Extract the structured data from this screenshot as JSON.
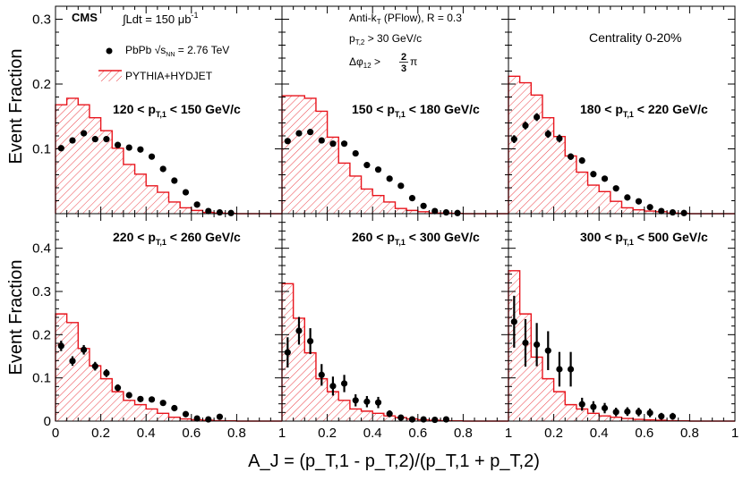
{
  "chart_data": {
    "type": "scatter",
    "ylabel": "Event Fraction",
    "xlabel": "A_J = (p_T,1 - p_T,2)/(p_T,1 + p_T,2)",
    "xlim": [
      0,
      1
    ],
    "grid": false,
    "legend_position": "top-left",
    "colors": {
      "mc": "#e8141c",
      "data": "#000000"
    },
    "shared_x": [
      0.025,
      0.075,
      0.125,
      0.175,
      0.225,
      0.275,
      0.325,
      0.375,
      0.425,
      0.475,
      0.525,
      0.575,
      0.625,
      0.675,
      0.725,
      0.775,
      0.825,
      0.875,
      0.925,
      0.975
    ],
    "ticks": {
      "x_labels": [
        "0",
        "0.2",
        "0.4",
        "0.6",
        "0.8",
        "1"
      ],
      "x_values": [
        0,
        0.2,
        0.4,
        0.6,
        0.8,
        1.0
      ],
      "top_row_labels": [
        "0.1",
        "0.2",
        "0.3"
      ],
      "top_row_values": [
        0.1,
        0.2,
        0.3
      ],
      "bottom_row_labels": [
        "0",
        "0.1",
        "0.2",
        "0.3",
        "0.4"
      ],
      "bottom_row_values": [
        0,
        0.1,
        0.2,
        0.3,
        0.4
      ]
    },
    "annotations": {
      "experiment": "CMS",
      "lumi": "∫Ldt = 150 μb",
      "lumi_sup": "-1",
      "algo_main": "Anti-k",
      "algo_sub": "T",
      "algo_rest": " (PFlow), R = 0.3",
      "pt2_main": "p",
      "pt2_sub": "T,2",
      "pt2_rest": " > 30 GeV/c",
      "dphi_main": "Δφ",
      "dphi_sub": "12",
      "dphi_rest": " > ",
      "dphi_frac_num": "2",
      "dphi_frac_den": "3",
      "dphi_pi": "π",
      "centrality": "Centrality 0-20%"
    },
    "legend": {
      "data_main": "PbPb ",
      "data_sqrt": "√s",
      "data_sub": "NN",
      "data_rest": " = 2.76 TeV",
      "mc": "PYTHIA+HYDJET"
    },
    "panels": [
      {
        "label_main": "120 < p",
        "label_sub": "T,1",
        "label_rest": " < 150 GeV/c",
        "ylim": [
          0,
          0.32
        ],
        "mc": [
          0.168,
          0.178,
          0.168,
          0.148,
          0.128,
          0.101,
          0.076,
          0.061,
          0.043,
          0.033,
          0.018,
          0.009,
          0.005,
          0.002,
          0.001,
          0.0005,
          0,
          0,
          0,
          0
        ],
        "data": [
          0.101,
          0.113,
          0.124,
          0.115,
          0.115,
          0.106,
          0.102,
          0.099,
          0.088,
          0.069,
          0.051,
          0.033,
          0.014,
          0.004,
          0.002,
          0.001,
          0,
          0,
          0,
          0
        ],
        "err": [
          0.003,
          0.003,
          0.003,
          0.003,
          0.003,
          0.003,
          0.003,
          0.003,
          0.003,
          0.003,
          0.003,
          0.003,
          0.002,
          0.001,
          0.001,
          0.001,
          0,
          0,
          0,
          0
        ]
      },
      {
        "label_main": "150 < p",
        "label_sub": "T,1",
        "label_rest": " < 180 GeV/c",
        "ylim": [
          0,
          0.32
        ],
        "mc": [
          0.182,
          0.182,
          0.178,
          0.158,
          0.118,
          0.078,
          0.058,
          0.038,
          0.028,
          0.018,
          0.008,
          0.005,
          0.003,
          0.001,
          0.001,
          0.0005,
          0,
          0,
          0,
          0
        ],
        "data": [
          0.112,
          0.124,
          0.126,
          0.113,
          0.108,
          0.108,
          0.093,
          0.075,
          0.068,
          0.054,
          0.043,
          0.024,
          0.012,
          0.004,
          0.002,
          0.001,
          0,
          0,
          0,
          0
        ],
        "err": [
          0.004,
          0.004,
          0.004,
          0.004,
          0.004,
          0.004,
          0.004,
          0.004,
          0.003,
          0.003,
          0.003,
          0.003,
          0.002,
          0.001,
          0.001,
          0.001,
          0,
          0,
          0,
          0
        ]
      },
      {
        "label_main": "180 < p",
        "label_sub": "T,1",
        "label_rest": " < 220 GeV/c",
        "ylim": [
          0,
          0.32
        ],
        "mc": [
          0.212,
          0.202,
          0.183,
          0.148,
          0.119,
          0.089,
          0.064,
          0.044,
          0.034,
          0.019,
          0.009,
          0.006,
          0.004,
          0.003,
          0.001,
          0.0005,
          0,
          0,
          0,
          0
        ],
        "data": [
          0.115,
          0.136,
          0.149,
          0.123,
          0.116,
          0.088,
          0.082,
          0.061,
          0.054,
          0.039,
          0.025,
          0.019,
          0.01,
          0.004,
          0.002,
          0.001,
          0,
          0,
          0,
          0
        ],
        "err": [
          0.006,
          0.006,
          0.006,
          0.006,
          0.006,
          0.005,
          0.005,
          0.004,
          0.004,
          0.003,
          0.003,
          0.003,
          0.002,
          0.001,
          0.001,
          0.001,
          0,
          0,
          0,
          0
        ]
      },
      {
        "label_main": "220 < p",
        "label_sub": "T,1",
        "label_rest": " < 260 GeV/c",
        "ylim": [
          0,
          0.48
        ],
        "mc": [
          0.248,
          0.228,
          0.168,
          0.128,
          0.098,
          0.068,
          0.048,
          0.038,
          0.028,
          0.018,
          0.009,
          0.005,
          0.003,
          0.002,
          0.001,
          0.0005,
          0,
          0,
          0,
          0
        ],
        "data": [
          0.174,
          0.139,
          0.165,
          0.127,
          0.111,
          0.077,
          0.06,
          0.051,
          0.05,
          0.042,
          0.03,
          0.016,
          0.006,
          0.004,
          0.01,
          0.0,
          0,
          0,
          0,
          0
        ],
        "err": [
          0.012,
          0.011,
          0.011,
          0.01,
          0.009,
          0.008,
          0.007,
          0.006,
          0.006,
          0.005,
          0.004,
          0.003,
          0.002,
          0.002,
          0.002,
          0.0,
          0,
          0,
          0,
          0
        ]
      },
      {
        "label_main": "260 < p",
        "label_sub": "T,1",
        "label_rest": " < 300 GeV/c",
        "ylim": [
          0,
          0.48
        ],
        "mc": [
          0.318,
          0.238,
          0.158,
          0.098,
          0.068,
          0.048,
          0.028,
          0.023,
          0.018,
          0.012,
          0.008,
          0.005,
          0.003,
          0.002,
          0.001,
          0.0005,
          0,
          0,
          0,
          0
        ],
        "data": [
          0.159,
          0.209,
          0.185,
          0.107,
          0.081,
          0.087,
          0.048,
          0.045,
          0.043,
          0.017,
          0.008,
          0.004,
          0.004,
          0.003,
          0.004,
          0.0,
          0,
          0,
          0,
          0
        ],
        "err": [
          0.035,
          0.032,
          0.03,
          0.025,
          0.022,
          0.02,
          0.014,
          0.013,
          0.013,
          0.008,
          0.005,
          0.004,
          0.004,
          0.003,
          0.004,
          0.0,
          0,
          0,
          0,
          0
        ]
      },
      {
        "label_main": "300 < p",
        "label_sub": "T,1",
        "label_rest": " < 500 GeV/c",
        "ylim": [
          0,
          0.48
        ],
        "mc": [
          0.348,
          0.248,
          0.148,
          0.098,
          0.068,
          0.038,
          0.028,
          0.018,
          0.012,
          0.009,
          0.006,
          0.004,
          0.003,
          0.002,
          0.001,
          0.0005,
          0,
          0,
          0,
          0
        ],
        "data": [
          0.23,
          0.181,
          0.177,
          0.163,
          0.12,
          0.12,
          0.039,
          0.033,
          0.03,
          0.021,
          0.022,
          0.021,
          0.019,
          0.011,
          0.011,
          0.0,
          0,
          0,
          0,
          0
        ],
        "err": [
          0.06,
          0.055,
          0.05,
          0.045,
          0.04,
          0.04,
          0.015,
          0.013,
          0.012,
          0.01,
          0.01,
          0.01,
          0.01,
          0.008,
          0.008,
          0.0,
          0,
          0,
          0,
          0
        ]
      }
    ]
  }
}
